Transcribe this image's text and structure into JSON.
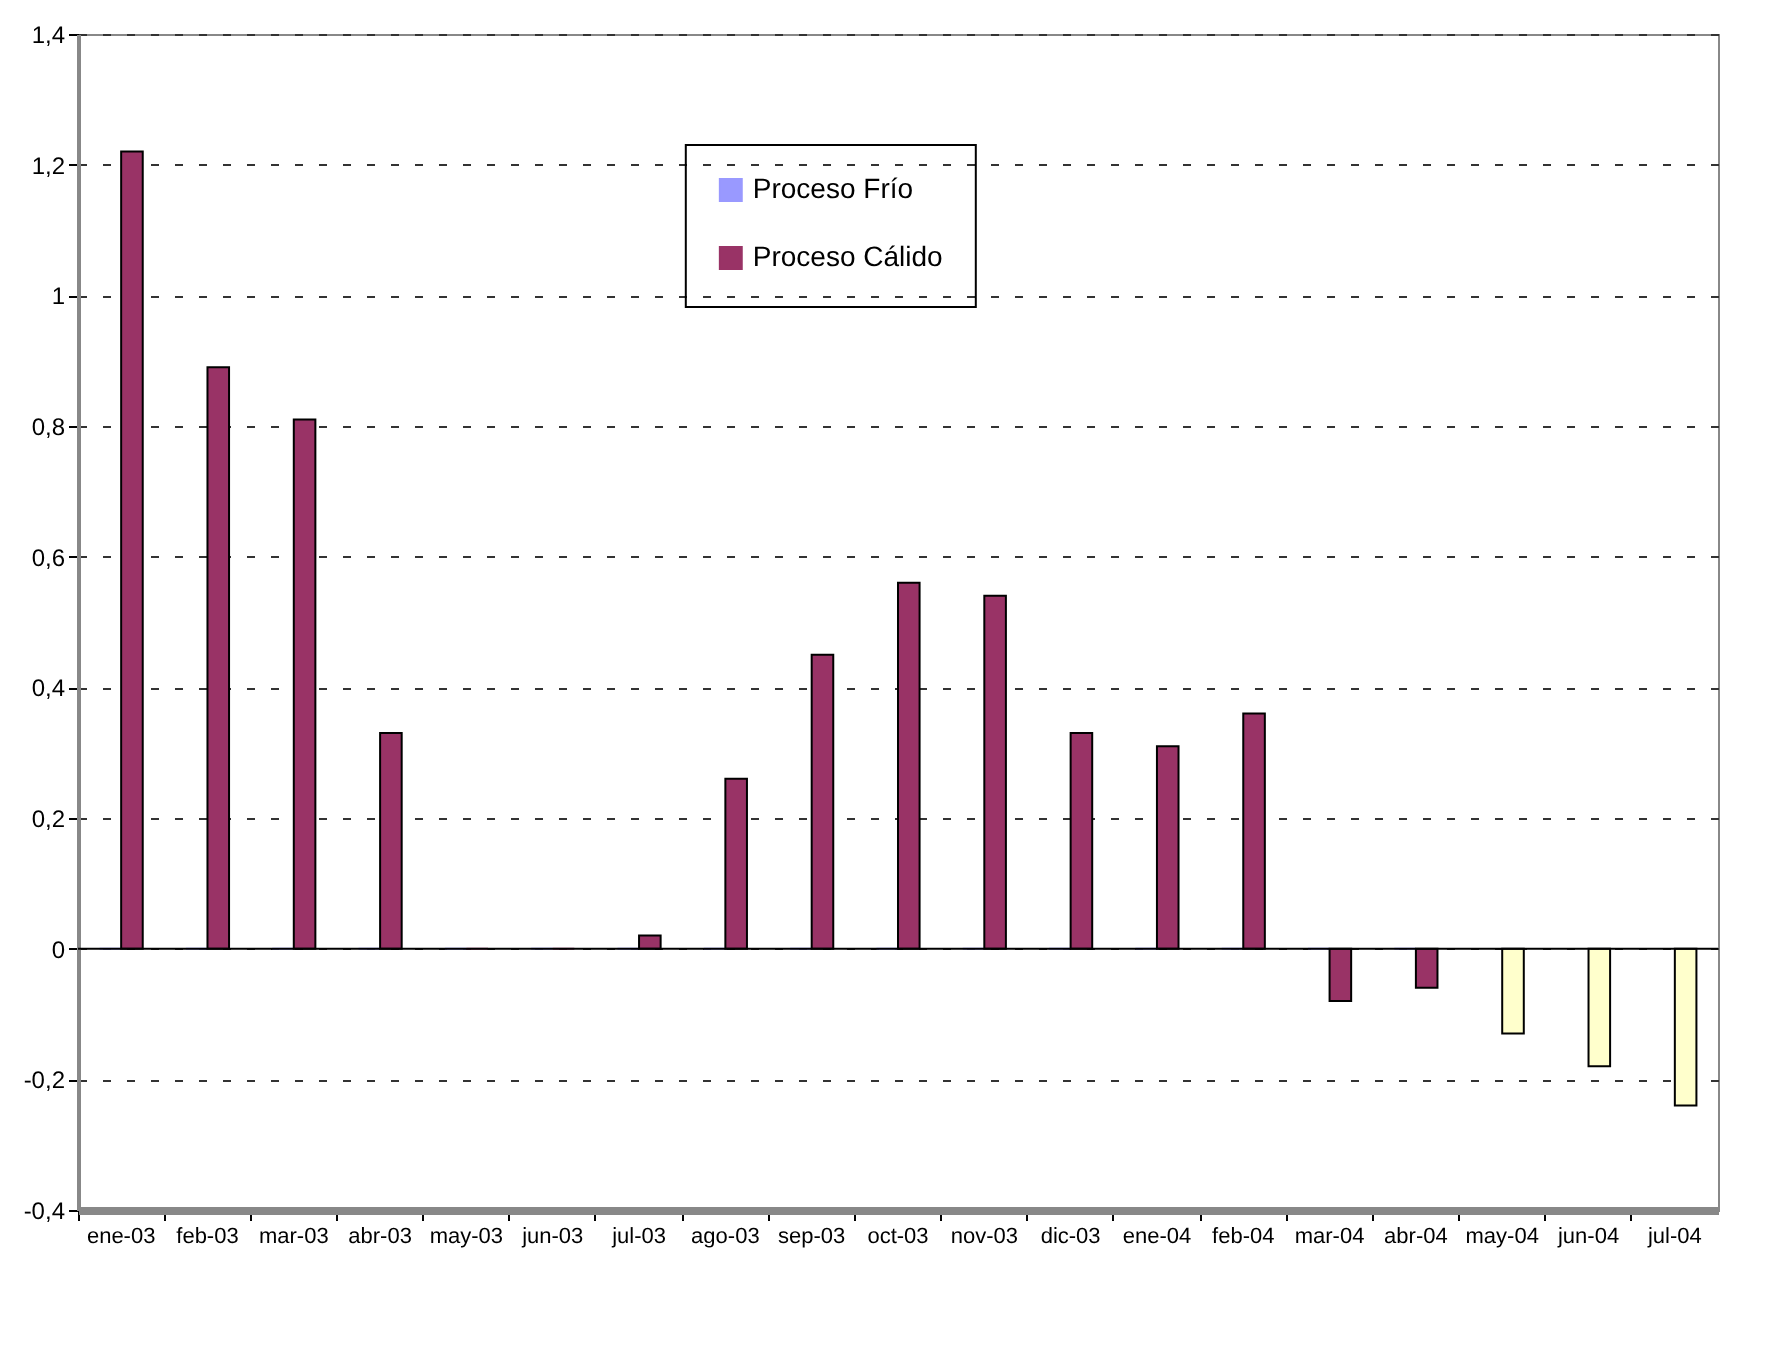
{
  "chart_data": {
    "type": "bar",
    "categories": [
      "ene-03",
      "feb-03",
      "mar-03",
      "abr-03",
      "may-03",
      "jun-03",
      "jul-03",
      "ago-03",
      "sep-03",
      "oct-03",
      "nov-03",
      "dic-03",
      "ene-04",
      "feb-04",
      "mar-04",
      "abr-04",
      "may-04",
      "jun-04",
      "jul-04"
    ],
    "series": [
      {
        "name": "Proceso Frío",
        "color": "#9999ff",
        "values": [
          0,
          0,
          0,
          0,
          0,
          0,
          0,
          0,
          0,
          0,
          0,
          0,
          0,
          0,
          0,
          0,
          null,
          null,
          null
        ]
      },
      {
        "name": "Proceso Cálido",
        "color": "#993366",
        "values": [
          1.22,
          0.89,
          0.81,
          0.33,
          0,
          0,
          0.02,
          0.26,
          0.45,
          0.56,
          0.54,
          0.33,
          0.31,
          0.36,
          -0.08,
          -0.06,
          -0.13,
          -0.18,
          -0.24
        ],
        "colors": [
          "#993366",
          "#993366",
          "#993366",
          "#993366",
          "#993366",
          "#993366",
          "#993366",
          "#993366",
          "#993366",
          "#993366",
          "#993366",
          "#993366",
          "#993366",
          "#993366",
          "#993366",
          "#993366",
          "#ffffcc",
          "#ffffcc",
          "#ffffcc"
        ]
      }
    ],
    "ylim": [
      -0.4,
      1.4
    ],
    "yticks": [
      {
        "value": -0.4,
        "label": "-0,4"
      },
      {
        "value": -0.2,
        "label": "-0,2"
      },
      0,
      {
        "value": 0.2,
        "label": "0,2"
      },
      {
        "value": 0.4,
        "label": "0,4"
      },
      {
        "value": 0.6,
        "label": "0,6"
      },
      {
        "value": 0.8,
        "label": "0,8"
      },
      1,
      {
        "value": 1.2,
        "label": "1,2"
      },
      {
        "value": 1.4,
        "label": "1,4"
      }
    ],
    "grid": "y",
    "legend": "top"
  }
}
